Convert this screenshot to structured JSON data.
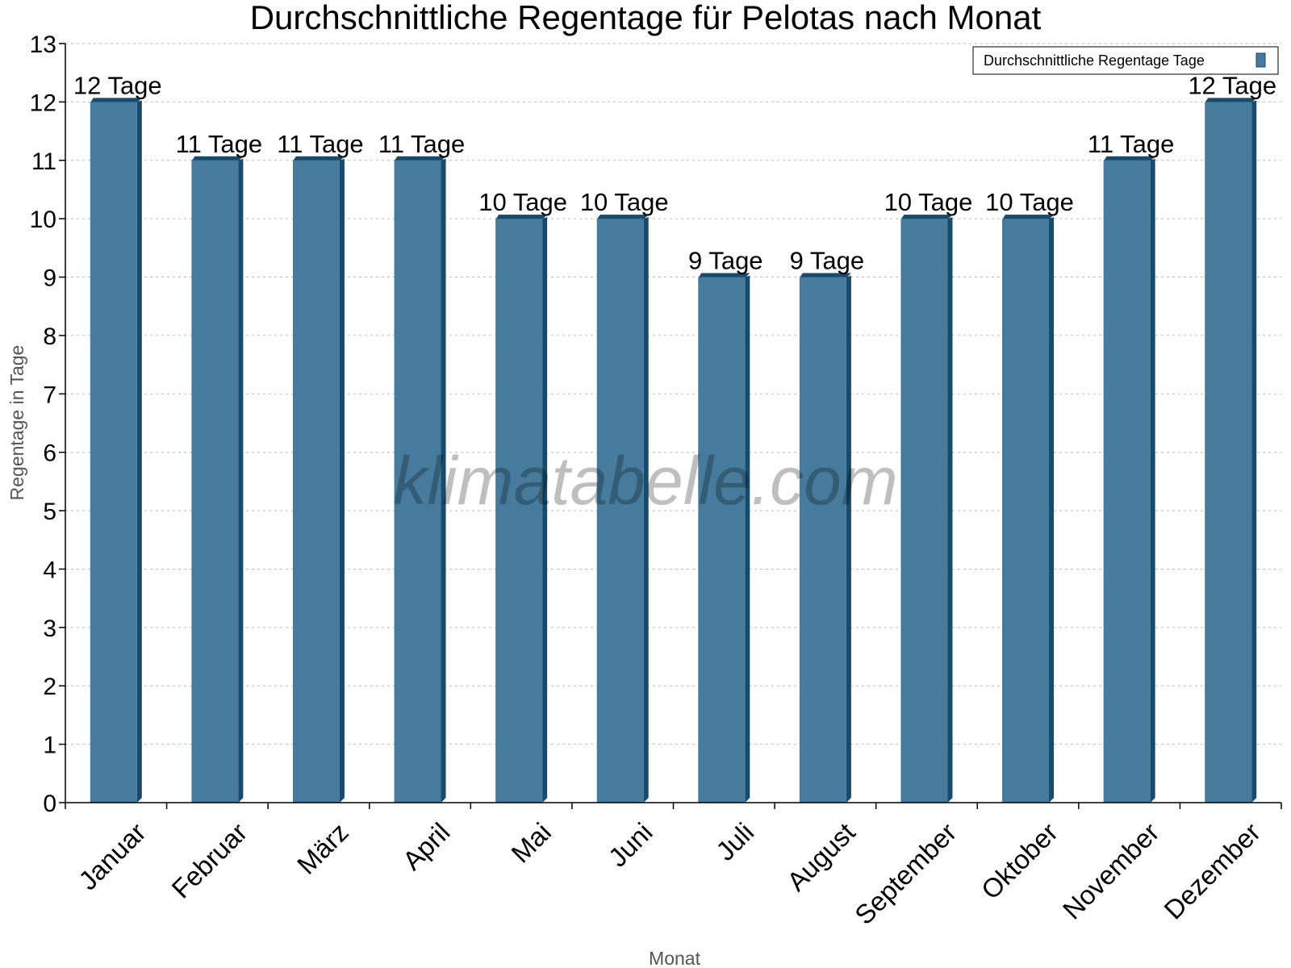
{
  "chart_data": {
    "type": "bar",
    "title": "Durchschnittliche Regentage für Pelotas nach Monat",
    "xlabel": "Monat",
    "ylabel": "Regentage in Tage",
    "categories": [
      "Januar",
      "Februar",
      "März",
      "April",
      "Mai",
      "Juni",
      "Juli",
      "August",
      "September",
      "Oktober",
      "November",
      "Dezember"
    ],
    "series": [
      {
        "name": "Durchschnittliche Regentage Tage",
        "values": [
          12,
          11,
          11,
          11,
          10,
          10,
          9,
          9,
          10,
          10,
          11,
          12
        ],
        "color": "#467b9d",
        "side_color": "#174a6b"
      }
    ],
    "data_labels": [
      "12 Tage",
      "11 Tage",
      "11 Tage",
      "11 Tage",
      "10 Tage",
      "10 Tage",
      "9 Tage",
      "9 Tage",
      "10 Tage",
      "10 Tage",
      "11 Tage",
      "12 Tage"
    ],
    "ylim": [
      0,
      13
    ],
    "yticks": [
      0,
      1,
      2,
      3,
      4,
      5,
      6,
      7,
      8,
      9,
      10,
      11,
      12,
      13
    ],
    "grid": true,
    "legend": "top-right",
    "watermark": "klimatabelle.com"
  }
}
